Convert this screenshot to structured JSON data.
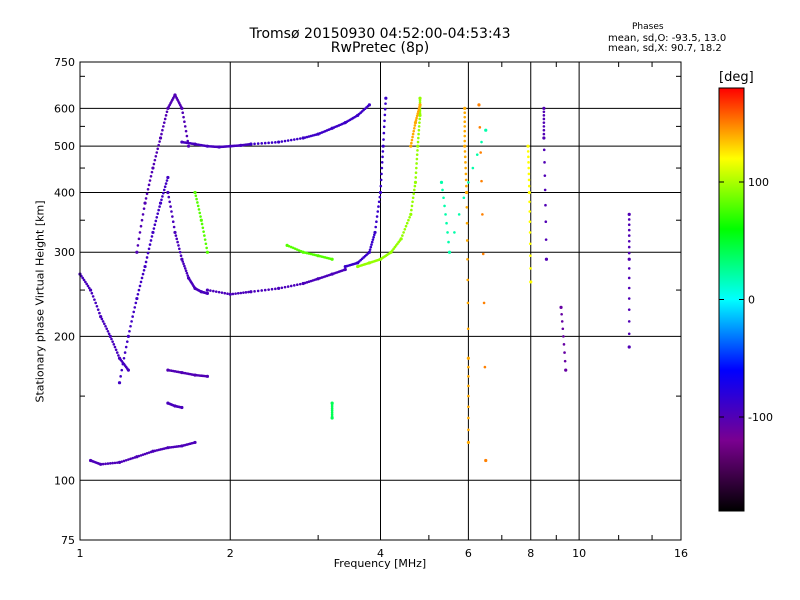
{
  "header": {
    "title_line1": "Tromsø 20150930 04:52:00-04:53:43",
    "title_line2": "RwPretec (8p)"
  },
  "phases_box": {
    "title": "Phases",
    "line1": "mean, sd,O: -93.5, 13.0",
    "line2": "mean, sd,X:  90.7, 18.2"
  },
  "colorbar": {
    "unit": "[deg]",
    "range": [
      -180,
      180
    ],
    "ticks": [
      {
        "value": 100,
        "label": "100"
      },
      {
        "value": 0,
        "label": "0"
      },
      {
        "value": -100,
        "label": "-100"
      }
    ],
    "colors": [
      "#000000",
      "#7a0090",
      "#0000ff",
      "#00ffff",
      "#00ff00",
      "#ffff00",
      "#ff0000"
    ]
  },
  "chart_data": {
    "type": "scatter",
    "title": "Tromsø 20150930 04:52:00-04:53:43",
    "subtitle": "RwPretec (8p)",
    "xlabel": "Frequency [MHz]",
    "ylabel": "Stationary phase Virtual Height [km]",
    "x_scale": "log",
    "y_scale": "log",
    "xlim": [
      1,
      16
    ],
    "ylim": [
      75,
      750
    ],
    "x_ticks": [
      1,
      2,
      4,
      6,
      8,
      10,
      16
    ],
    "y_ticks": [
      75,
      100,
      200,
      300,
      400,
      500,
      600,
      750
    ],
    "grid": true,
    "series": [
      {
        "value_unit": "deg",
        "traces": [
          {
            "x": [
              1.0,
              1.05,
              1.1,
              1.15,
              1.2,
              1.25
            ],
            "y": [
              270,
              250,
              220,
              200,
              180,
              170
            ],
            "phase": -95
          },
          {
            "x": [
              1.05,
              1.1,
              1.2,
              1.3,
              1.4,
              1.5,
              1.6,
              1.7
            ],
            "y": [
              110,
              108,
              109,
              112,
              115,
              117,
              118,
              120
            ],
            "phase": -98
          },
          {
            "x": [
              1.3,
              1.35,
              1.4,
              1.45,
              1.5,
              1.55,
              1.6,
              1.65
            ],
            "y": [
              300,
              380,
              450,
              520,
              600,
              640,
              600,
              500
            ],
            "phase": -100
          },
          {
            "x": [
              1.2,
              1.25,
              1.3,
              1.35,
              1.4,
              1.45,
              1.5
            ],
            "y": [
              160,
              200,
              240,
              280,
              330,
              380,
              430
            ],
            "phase": -92
          },
          {
            "x": [
              1.5,
              1.55,
              1.6,
              1.65,
              1.7,
              1.75,
              1.8
            ],
            "y": [
              400,
              330,
              290,
              265,
              252,
              248,
              246
            ],
            "phase": -96
          },
          {
            "x": [
              1.6,
              1.7,
              1.8,
              1.9,
              2.0,
              2.1,
              2.2
            ],
            "y": [
              510,
              505,
              500,
              498,
              500,
              502,
              505
            ],
            "phase": -95
          },
          {
            "x": [
              2.2,
              2.5,
              2.8,
              3.0,
              3.2,
              3.4,
              3.6,
              3.8
            ],
            "y": [
              505,
              510,
              520,
              530,
              545,
              560,
              580,
              610
            ],
            "phase": -90
          },
          {
            "x": [
              1.8,
              2.0,
              2.2,
              2.5,
              2.8,
              3.0,
              3.2,
              3.4
            ],
            "y": [
              250,
              245,
              248,
              252,
              258,
              264,
              270,
              276
            ],
            "phase": -97
          },
          {
            "x": [
              3.4,
              3.6,
              3.8,
              3.9,
              4.0,
              4.05,
              4.1
            ],
            "y": [
              280,
              285,
              300,
              330,
              400,
              500,
              630
            ],
            "phase": -88
          },
          {
            "x": [
              2.6,
              2.8,
              3.0,
              3.2
            ],
            "y": [
              310,
              300,
              295,
              290
            ],
            "phase": 80
          },
          {
            "x": [
              3.6,
              3.8,
              4.0,
              4.2,
              4.4,
              4.6,
              4.7,
              4.75,
              4.8,
              4.8
            ],
            "y": [
              280,
              285,
              290,
              300,
              320,
              360,
              420,
              500,
              580,
              630
            ],
            "phase": 95
          },
          {
            "x": [
              4.6,
              4.7,
              4.8
            ],
            "y": [
              500,
              560,
              610
            ],
            "phase": 140
          },
          {
            "x": [
              1.7,
              1.75,
              1.8
            ],
            "y": [
              400,
              350,
              300
            ],
            "phase": 80
          },
          {
            "x": [
              1.5,
              1.6,
              1.7,
              1.8
            ],
            "y": [
              170,
              168,
              166,
              165
            ],
            "phase": -100
          },
          {
            "x": [
              1.5,
              1.55,
              1.6
            ],
            "y": [
              145,
              143,
              142
            ],
            "phase": -96
          },
          {
            "x": [
              5.9,
              5.9,
              5.95,
              6.0,
              6.0
            ],
            "y": [
              600,
              500,
              400,
              180,
              120
            ],
            "phase": 140
          },
          {
            "x": [
              6.3,
              6.5
            ],
            "y": [
              610,
              110
            ],
            "phase": 150
          },
          {
            "x": [
              7.9,
              7.95,
              8.0
            ],
            "y": [
              500,
              400,
              260
            ],
            "phase": 120
          },
          {
            "x": [
              8.5,
              8.5,
              8.6
            ],
            "y": [
              600,
              520,
              290
            ],
            "phase": -100
          },
          {
            "x": [
              9.2,
              9.4
            ],
            "y": [
              230,
              170
            ],
            "phase": -110
          },
          {
            "x": [
              12.6,
              12.6,
              12.6
            ],
            "y": [
              360,
              290,
              190
            ],
            "phase": -100
          },
          {
            "x": [
              5.3,
              5.5,
              6.5
            ],
            "y": [
              420,
              300,
              540
            ],
            "phase": 20
          },
          {
            "x": [
              3.2,
              3.2
            ],
            "y": [
              145,
              135
            ],
            "phase": 40
          }
        ]
      }
    ]
  }
}
